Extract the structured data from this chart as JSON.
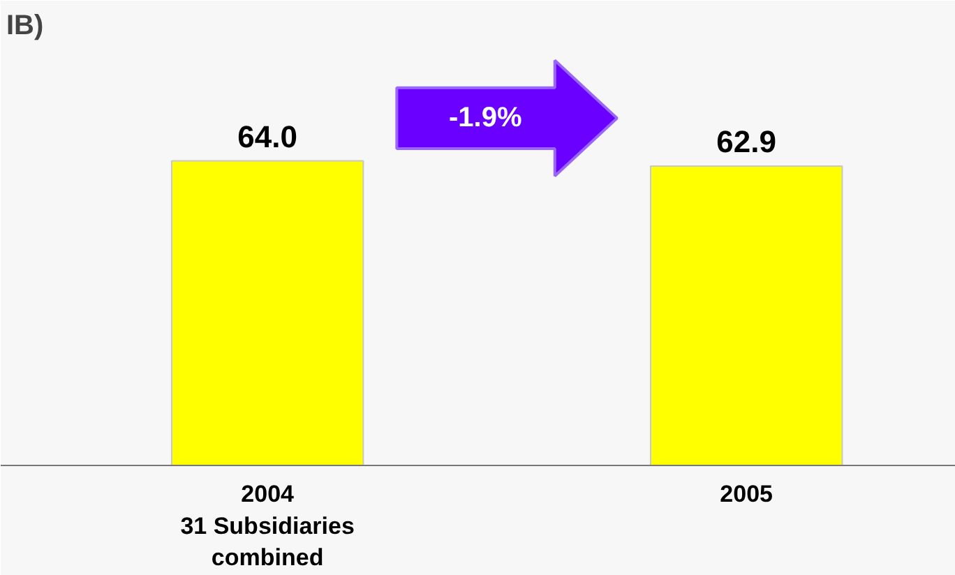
{
  "chart_data": {
    "type": "bar",
    "title": "IB)",
    "categories": [
      "2004\n31 Subsidiaries\ncombined",
      "2005"
    ],
    "values": [
      64.0,
      62.9
    ],
    "color": "#ffff00",
    "value_labels": [
      "64.0",
      "62.9"
    ],
    "annotations": [
      "-1.9%"
    ]
  }
}
